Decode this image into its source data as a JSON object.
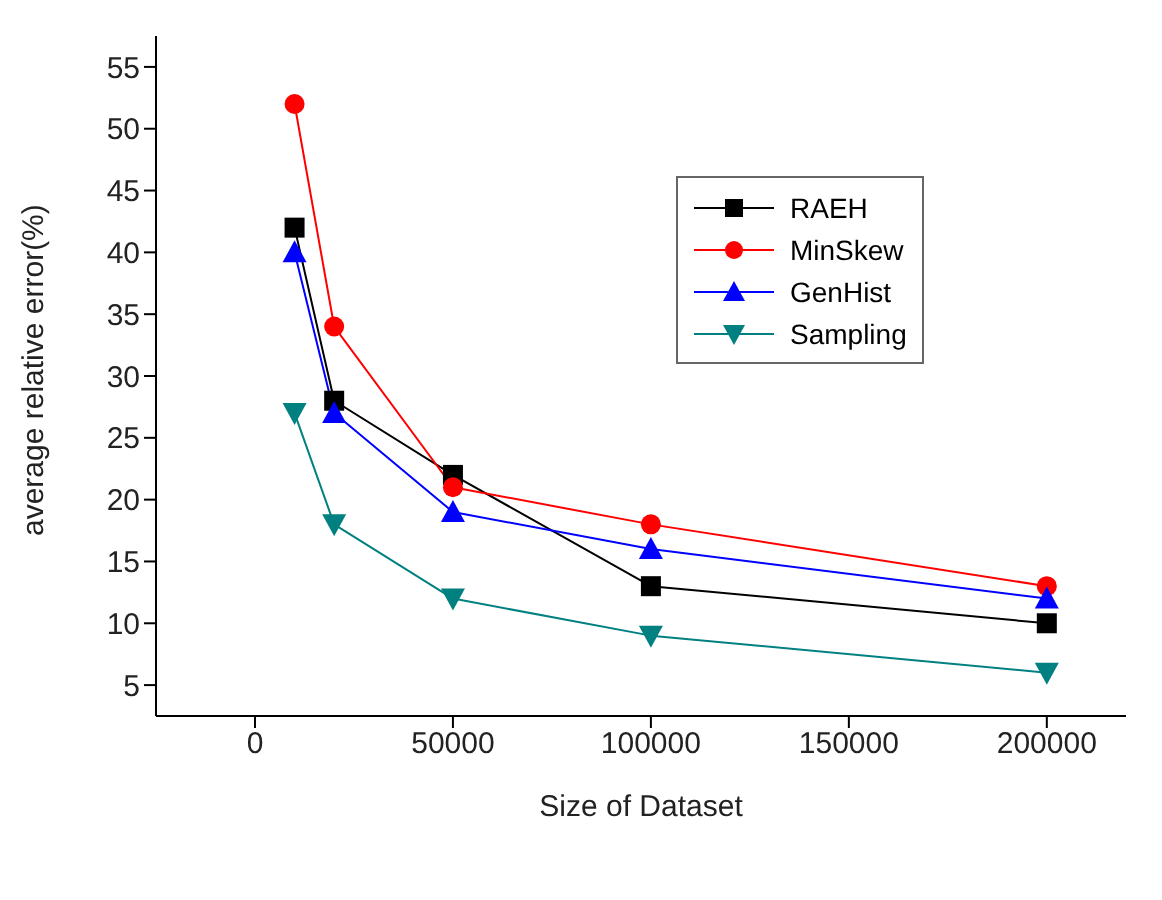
{
  "chart_data": {
    "type": "line",
    "xlabel": "Size of Dataset",
    "ylabel": "average relative error(%)",
    "x": [
      10000,
      20000,
      50000,
      100000,
      200000
    ],
    "series": [
      {
        "name": "RAEH",
        "color": "#000000",
        "marker": "square",
        "values": [
          42,
          28,
          22,
          13,
          10
        ]
      },
      {
        "name": "MinSkew",
        "color": "#ff0000",
        "marker": "circle",
        "values": [
          52,
          34,
          21,
          18,
          13
        ]
      },
      {
        "name": "GenHist",
        "color": "#0000ff",
        "marker": "triangle",
        "values": [
          40,
          27,
          19,
          16,
          12
        ]
      },
      {
        "name": "Sampling",
        "color": "#008080",
        "marker": "triangle-down",
        "values": [
          27,
          18,
          12,
          9,
          6
        ]
      }
    ],
    "xlim": [
      -25000,
      220000
    ],
    "xticks": [
      0,
      50000,
      100000,
      150000,
      200000
    ],
    "ylim": [
      2.5,
      57.5
    ],
    "yticks": [
      5,
      10,
      15,
      20,
      25,
      30,
      35,
      40,
      45,
      50,
      55
    ],
    "grid": false,
    "legend": "top right",
    "line_style": "solid"
  }
}
